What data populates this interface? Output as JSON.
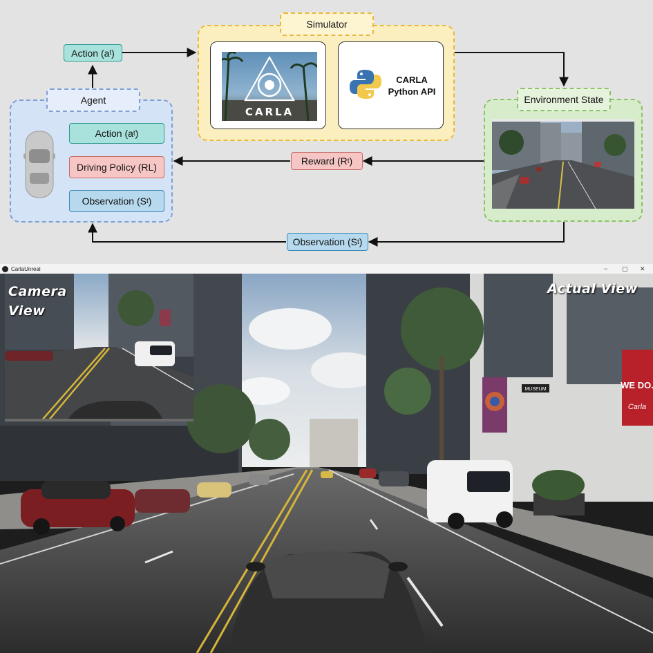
{
  "diagram": {
    "agent": {
      "title": "Agent",
      "action": {
        "label": "Action (a",
        "sub": "t",
        "suffix": ")"
      },
      "policy": "Driving Policy (RL)",
      "observation": {
        "label": "Observation (S",
        "sub": "t",
        "suffix": ")"
      }
    },
    "action_top": {
      "label": "Action (a",
      "sub": "t",
      "suffix": ")"
    },
    "simulator": {
      "title": "Simulator",
      "carla_logo": "CARLA",
      "api_line1": "CARLA",
      "api_line2": "Python API"
    },
    "environment": {
      "title": "Environment State"
    },
    "reward": {
      "label": "Reward (R",
      "sub": "t",
      "suffix": ")"
    },
    "observation_bottom": {
      "label": "Observation (S",
      "sub": "t",
      "suffix": ")"
    },
    "colors": {
      "agent_bg": "#d5e3f7",
      "simulator_bg": "#fbefc0",
      "environment_bg": "#d7ecca",
      "action_fill": "#a9e2dc",
      "policy_fill": "#f6c6c4",
      "observation_fill": "#b6d9ee"
    }
  },
  "window": {
    "title": "CarlaUnreal",
    "controls": {
      "minimize": "−",
      "maximize": "▢",
      "close": "✕"
    },
    "camera_view_line1": "Camera",
    "camera_view_line2": "View",
    "actual_view": "Actual View",
    "signs": {
      "museum": "MUSEUM",
      "wedo": "WE DO.",
      "carla": "Carla"
    }
  }
}
